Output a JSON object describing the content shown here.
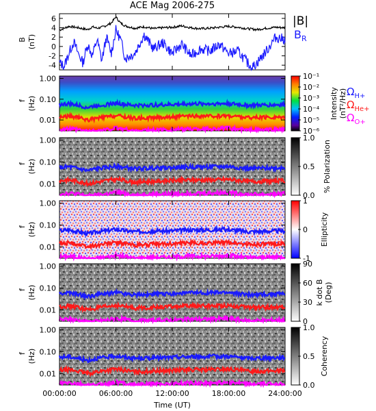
{
  "title": "ACE Mag 2006-275",
  "xaxis": {
    "label": "Time (UT)",
    "ticks": [
      "00:00:00",
      "06:00:00",
      "12:00:00",
      "18:00:00",
      "24:00:00"
    ],
    "tick_hours": [
      0,
      6,
      12,
      18,
      24
    ]
  },
  "legend": {
    "bmag": "|B|",
    "br": "B",
    "br_sub": "R",
    "h": "Ω",
    "h_sub": "H+",
    "he": "Ω",
    "he_sub": "He+",
    "o": "Ω",
    "o_sub": "O+"
  },
  "colors": {
    "bmag": "#000000",
    "br": "#1a1aff",
    "h": "#1a1aff",
    "he": "#ff1a1a",
    "o": "#ff00ff"
  },
  "panels": {
    "b": {
      "ylabel": "B",
      "yunit": "(nT)",
      "yticks": [
        "6",
        "4",
        "2",
        "0",
        "-2",
        "-4"
      ],
      "ylim": [
        -5,
        7
      ]
    },
    "spec": {
      "ylabel": "f",
      "yunit": "(Hz)",
      "yticks": [
        "1.00",
        "0.10",
        "0.01"
      ]
    },
    "intensity": {
      "cb_label": "Intensity",
      "cb_unit": "(nT²/Hz)",
      "cb_ticks": [
        "10⁻¹",
        "10⁻²",
        "10⁻³",
        "10⁻⁴",
        "10⁻⁵",
        "10⁻⁶"
      ]
    },
    "polarization": {
      "cb_label": "% Polarization",
      "cb_ticks": [
        "1.0",
        "0.5",
        "0.0"
      ]
    },
    "ellipticity": {
      "cb_label": "Ellipticity",
      "cb_ticks": [
        "1",
        "0",
        "-1"
      ]
    },
    "kdotb": {
      "cb_label": "k dot B",
      "cb_unit": "(Deg)",
      "cb_ticks": [
        "90",
        "60",
        "30",
        "0"
      ]
    },
    "coherency": {
      "cb_label": "Coherency",
      "cb_ticks": [
        "1.0",
        "0.5",
        "0.0"
      ]
    }
  },
  "chart_data": {
    "type": "line",
    "title": "ACE Mag 2006-275",
    "xlabel": "Time (UT)",
    "xlim_hours": [
      0,
      24
    ],
    "series": [
      {
        "name": "|B|",
        "panel": "b",
        "x": [
          0,
          1,
          2,
          3,
          3.5,
          4,
          4.5,
          5,
          5.5,
          6,
          6.5,
          7,
          8,
          9,
          10,
          11,
          12,
          13,
          14,
          15,
          16,
          17,
          18,
          19,
          20,
          21,
          22,
          23,
          24
        ],
        "y": [
          3.5,
          4.3,
          4.0,
          3.6,
          4.2,
          3.9,
          4.1,
          4.5,
          5.0,
          6.3,
          5.0,
          4.4,
          3.9,
          4.2,
          3.8,
          4.0,
          4.1,
          4.4,
          4.0,
          3.8,
          3.9,
          4.1,
          4.3,
          4.1,
          3.8,
          3.6,
          3.9,
          4.1,
          4.0
        ]
      },
      {
        "name": "BR",
        "panel": "b",
        "x": [
          0,
          0.5,
          1,
          1.5,
          2,
          2.5,
          3,
          3.5,
          4,
          4.5,
          5,
          5.5,
          6,
          6.5,
          7,
          8,
          9,
          10,
          11,
          12,
          13,
          14,
          15,
          16,
          17,
          18,
          19,
          20,
          20.5,
          21,
          22,
          23,
          24
        ],
        "y": [
          -3.5,
          -4.2,
          -1.5,
          1.0,
          -1.5,
          -3.5,
          0.5,
          -2.0,
          1.5,
          -3.0,
          2.0,
          -1.5,
          3.5,
          1.5,
          -2.5,
          -1.5,
          2.5,
          -0.5,
          0.8,
          -1.5,
          0.5,
          -2.0,
          -0.5,
          -1.0,
          0.5,
          -1.5,
          -1.0,
          -3.5,
          -4.5,
          -3.5,
          -1.0,
          2.0,
          1.5
        ]
      },
      {
        "name": "ΩH+",
        "panel": "spectrograms",
        "unit": "Hz",
        "x": [
          0,
          1,
          2,
          3,
          4,
          5,
          6,
          7,
          8,
          10,
          12,
          14,
          16,
          18,
          20,
          22,
          24
        ],
        "y": [
          0.055,
          0.06,
          0.05,
          0.04,
          0.05,
          0.055,
          0.065,
          0.055,
          0.05,
          0.052,
          0.055,
          0.06,
          0.06,
          0.062,
          0.05,
          0.052,
          0.055
        ]
      },
      {
        "name": "ΩHe+",
        "panel": "spectrograms",
        "unit": "Hz",
        "x": [
          0,
          1,
          2,
          3,
          4,
          5,
          6,
          7,
          8,
          10,
          12,
          14,
          16,
          18,
          20,
          22,
          24
        ],
        "y": [
          0.014,
          0.015,
          0.013,
          0.01,
          0.012,
          0.014,
          0.016,
          0.014,
          0.012,
          0.013,
          0.014,
          0.015,
          0.015,
          0.016,
          0.013,
          0.013,
          0.014
        ]
      },
      {
        "name": "ΩO+",
        "panel": "spectrograms",
        "unit": "Hz",
        "x": [
          0,
          1,
          2,
          3,
          4,
          5,
          6,
          7,
          8,
          10,
          12,
          14,
          16,
          18,
          20,
          22,
          24
        ],
        "y": [
          0.0035,
          0.0037,
          0.0033,
          0.0028,
          0.003,
          0.0034,
          0.004,
          0.0036,
          0.003,
          0.0033,
          0.0034,
          0.0037,
          0.0037,
          0.004,
          0.0032,
          0.0033,
          0.0035
        ]
      }
    ]
  }
}
